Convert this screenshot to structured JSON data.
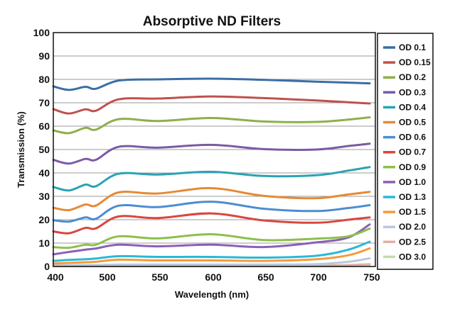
{
  "chart_data": {
    "type": "line",
    "title": "Absorptive ND Filters",
    "xlabel": "Wavelength (nm)",
    "ylabel": "Transmission (%)",
    "xticks": [
      400,
      500,
      550,
      600,
      650,
      700,
      750
    ],
    "yticks": [
      0,
      10,
      20,
      30,
      40,
      50,
      60,
      70,
      80,
      90,
      100
    ],
    "ylim": [
      0,
      100
    ],
    "xlim": [
      400,
      750
    ],
    "grid": "horizontal",
    "legend_position": "right",
    "x": [
      400,
      430,
      462,
      482,
      513,
      550,
      600,
      650,
      700,
      730,
      750
    ],
    "series": [
      {
        "name": "OD 0.1",
        "color": "#3a6ea5",
        "values": [
          77,
          75.5,
          76.8,
          76,
          79.5,
          80,
          80.3,
          79.8,
          79,
          78.6,
          78.3
        ]
      },
      {
        "name": "OD 0.15",
        "color": "#c0504d",
        "values": [
          67.3,
          65.4,
          67.2,
          66.6,
          71.5,
          71.8,
          72.7,
          72,
          71,
          70.2,
          69.7
        ]
      },
      {
        "name": "OD 0.2",
        "color": "#8db04a",
        "values": [
          58.2,
          57,
          59.3,
          58.5,
          63,
          62.2,
          63.5,
          62,
          61.8,
          62.8,
          63.8
        ]
      },
      {
        "name": "OD 0.3",
        "color": "#7b5aa6",
        "values": [
          45.6,
          44,
          46,
          45.6,
          51.2,
          50.8,
          52,
          50.2,
          50,
          51.5,
          52.5
        ]
      },
      {
        "name": "OD 0.4",
        "color": "#2aa3b5",
        "values": [
          34,
          32.5,
          35,
          34.3,
          39.7,
          39.3,
          40.5,
          38.7,
          39,
          41,
          42.5
        ]
      },
      {
        "name": "OD 0.5",
        "color": "#e58a35",
        "values": [
          25.1,
          24.1,
          26.5,
          26,
          31.7,
          31.2,
          33.5,
          30.2,
          29.2,
          30.8,
          31.9
        ]
      },
      {
        "name": "OD 0.6",
        "color": "#4a8ed0",
        "values": [
          19.8,
          19.2,
          21,
          20.4,
          26,
          25.4,
          27.7,
          24.7,
          23.7,
          25,
          26.2
        ]
      },
      {
        "name": "OD 0.7",
        "color": "#d9473f",
        "values": [
          15,
          14.2,
          16.5,
          16.3,
          21.4,
          20.7,
          22.7,
          19.7,
          18.7,
          20,
          21
        ]
      },
      {
        "name": "OD 0.9",
        "color": "#8cc04a",
        "values": [
          8.3,
          8,
          9.3,
          9.3,
          12.9,
          12,
          13.8,
          11.3,
          11.9,
          12.9,
          16.2
        ]
      },
      {
        "name": "OD 1.0",
        "color": "#8a5fb8",
        "values": [
          5.2,
          6.2,
          7.2,
          7.7,
          9.3,
          8.6,
          9.3,
          8.3,
          10.3,
          12.4,
          18
        ]
      },
      {
        "name": "OD 1.3",
        "color": "#2bb8d6",
        "values": [
          2.4,
          2.8,
          3.1,
          3.4,
          4.4,
          4.1,
          4.1,
          3.8,
          4.6,
          7.2,
          10.6
        ]
      },
      {
        "name": "OD 1.5",
        "color": "#f59a3a",
        "values": [
          1.3,
          1.5,
          1.8,
          2,
          2.9,
          2.6,
          2.6,
          2.4,
          3.1,
          4.8,
          7.7
        ]
      },
      {
        "name": "OD 2.0",
        "color": "#b8c8e0",
        "values": [
          0.5,
          0.5,
          0.6,
          0.6,
          0.8,
          0.8,
          0.8,
          0.8,
          1,
          2,
          3.5
        ]
      },
      {
        "name": "OD 2.5",
        "color": "#e0b0a8",
        "values": [
          0.2,
          0.2,
          0.2,
          0.2,
          0.3,
          0.3,
          0.3,
          0.3,
          0.4,
          0.6,
          1
        ]
      },
      {
        "name": "OD 3.0",
        "color": "#c0dcb0",
        "values": [
          0.1,
          0.1,
          0.1,
          0.1,
          0.1,
          0.1,
          0.1,
          0.1,
          0.1,
          0.2,
          0.3
        ]
      }
    ]
  }
}
